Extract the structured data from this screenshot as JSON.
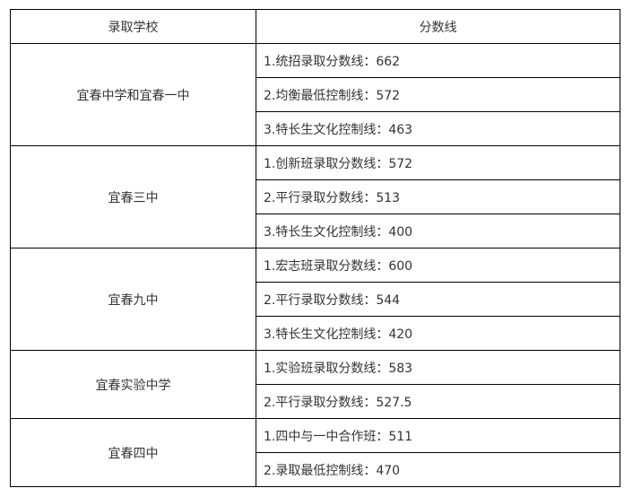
{
  "headers": {
    "school": "录取学校",
    "score": "分数线"
  },
  "rows": [
    {
      "school": "宜春中学和宜春一中",
      "lines": [
        "1.统招录取分数线：662",
        "2.均衡最低控制线：572",
        "3.特长生文化控制线：463"
      ]
    },
    {
      "school": "宜春三中",
      "lines": [
        "1.创新班录取分数线：572",
        "2.平行录取分数线：513",
        "3.特长生文化控制线：400"
      ]
    },
    {
      "school": "宜春九中",
      "lines": [
        "1.宏志班录取分数线：600",
        "2.平行录取分数线：544",
        "3.特长生文化控制线：420"
      ]
    },
    {
      "school": "宜春实验中学",
      "lines": [
        "1.实验班录取分数线：583",
        "2.平行录取分数线：527.5"
      ]
    },
    {
      "school": "宜春四中",
      "lines": [
        "1.四中与一中合作班：511",
        "2.录取最低控制线：470"
      ]
    }
  ]
}
